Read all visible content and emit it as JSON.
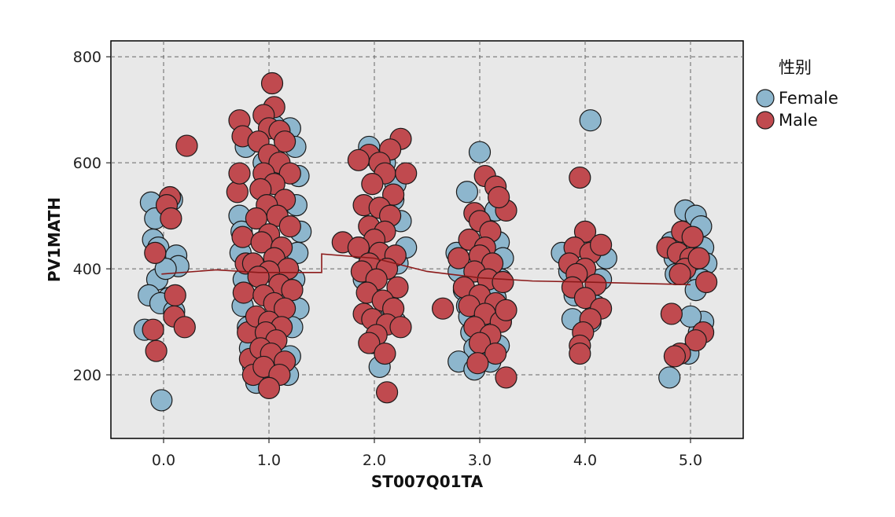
{
  "chart_data": {
    "type": "scatter",
    "xlabel": "ST007Q01TA",
    "ylabel": "PV1MATH",
    "xlim": [
      -0.5,
      5.5
    ],
    "ylim": [
      80,
      830
    ],
    "x_ticks": [
      "0.0",
      "1.0",
      "2.0",
      "3.0",
      "4.0",
      "5.0"
    ],
    "x_tick_values": [
      0,
      1,
      2,
      3,
      4,
      5
    ],
    "y_ticks": [
      "200",
      "400",
      "600",
      "800"
    ],
    "y_tick_values": [
      200,
      400,
      600,
      800
    ],
    "grid": true,
    "grid_style": "dashed",
    "legend_title": "性别",
    "legend_position": "right",
    "series": [
      {
        "name": "Female",
        "color": "#8db6cd",
        "points": [
          [
            -0.12,
            525
          ],
          [
            -0.08,
            495
          ],
          [
            -0.1,
            455
          ],
          [
            -0.05,
            440
          ],
          [
            0.12,
            425
          ],
          [
            0.14,
            405
          ],
          [
            -0.06,
            380
          ],
          [
            -0.14,
            350
          ],
          [
            0.05,
            345
          ],
          [
            -0.03,
            335
          ],
          [
            0.1,
            320
          ],
          [
            -0.18,
            285
          ],
          [
            0.02,
            400
          ],
          [
            -0.02,
            152
          ],
          [
            0.08,
            530
          ],
          [
            0.78,
            630
          ],
          [
            0.72,
            500
          ],
          [
            0.74,
            470
          ],
          [
            0.73,
            430
          ],
          [
            0.76,
            380
          ],
          [
            0.75,
            330
          ],
          [
            0.8,
            290
          ],
          [
            0.82,
            250
          ],
          [
            0.85,
            215
          ],
          [
            0.88,
            185
          ],
          [
            1.2,
            665
          ],
          [
            1.25,
            630
          ],
          [
            1.28,
            575
          ],
          [
            1.26,
            520
          ],
          [
            1.3,
            470
          ],
          [
            1.27,
            430
          ],
          [
            1.24,
            380
          ],
          [
            1.28,
            325
          ],
          [
            1.22,
            290
          ],
          [
            1.2,
            235
          ],
          [
            1.18,
            200
          ],
          [
            1.05,
            670
          ],
          [
            0.95,
            600
          ],
          [
            1.95,
            630
          ],
          [
            2.1,
            600
          ],
          [
            2.2,
            560
          ],
          [
            2.18,
            530
          ],
          [
            2.25,
            490
          ],
          [
            2.3,
            440
          ],
          [
            2.22,
            410
          ],
          [
            2.15,
            330
          ],
          [
            2.2,
            300
          ],
          [
            1.98,
            260
          ],
          [
            2.05,
            215
          ],
          [
            1.85,
            440
          ],
          [
            1.9,
            380
          ],
          [
            2.78,
            430
          ],
          [
            2.8,
            395
          ],
          [
            2.85,
            360
          ],
          [
            2.88,
            330
          ],
          [
            2.9,
            310
          ],
          [
            2.92,
            280
          ],
          [
            2.95,
            250
          ],
          [
            2.8,
            225
          ],
          [
            2.95,
            210
          ],
          [
            2.88,
            545
          ],
          [
            3.0,
            620
          ],
          [
            3.15,
            510
          ],
          [
            3.18,
            450
          ],
          [
            3.22,
            420
          ],
          [
            3.2,
            380
          ],
          [
            3.15,
            345
          ],
          [
            3.2,
            300
          ],
          [
            3.18,
            255
          ],
          [
            3.1,
            225
          ],
          [
            3.78,
            430
          ],
          [
            3.85,
            395
          ],
          [
            3.9,
            350
          ],
          [
            3.88,
            305
          ],
          [
            4.05,
            680
          ],
          [
            4.2,
            420
          ],
          [
            4.15,
            380
          ],
          [
            4.1,
            330
          ],
          [
            4.05,
            300
          ],
          [
            4.82,
            450
          ],
          [
            4.85,
            420
          ],
          [
            4.86,
            390
          ],
          [
            4.8,
            195
          ],
          [
            4.95,
            510
          ],
          [
            5.05,
            500
          ],
          [
            5.1,
            480
          ],
          [
            5.12,
            440
          ],
          [
            5.15,
            410
          ],
          [
            5.1,
            380
          ],
          [
            5.05,
            360
          ],
          [
            5.12,
            300
          ],
          [
            5.08,
            280
          ],
          [
            4.98,
            240
          ],
          [
            5.0,
            310
          ]
        ]
      },
      {
        "name": "Male",
        "color": "#c04a4f",
        "points": [
          [
            0.22,
            632
          ],
          [
            0.06,
            535
          ],
          [
            0.03,
            520
          ],
          [
            0.07,
            495
          ],
          [
            -0.08,
            430
          ],
          [
            0.11,
            350
          ],
          [
            0.1,
            310
          ],
          [
            -0.1,
            285
          ],
          [
            0.2,
            290
          ],
          [
            -0.07,
            245
          ],
          [
            0.72,
            680
          ],
          [
            0.75,
            650
          ],
          [
            0.7,
            545
          ],
          [
            0.72,
            580
          ],
          [
            0.75,
            460
          ],
          [
            0.78,
            410
          ],
          [
            0.76,
            355
          ],
          [
            0.8,
            280
          ],
          [
            0.82,
            230
          ],
          [
            0.85,
            200
          ],
          [
            1.03,
            750
          ],
          [
            1.05,
            705
          ],
          [
            0.95,
            690
          ],
          [
            1.0,
            665
          ],
          [
            1.1,
            660
          ],
          [
            1.15,
            640
          ],
          [
            0.9,
            640
          ],
          [
            1.0,
            615
          ],
          [
            1.1,
            600
          ],
          [
            0.95,
            580
          ],
          [
            1.2,
            580
          ],
          [
            1.05,
            560
          ],
          [
            0.92,
            550
          ],
          [
            1.15,
            530
          ],
          [
            0.98,
            520
          ],
          [
            1.08,
            500
          ],
          [
            0.88,
            495
          ],
          [
            1.2,
            480
          ],
          [
            1.0,
            465
          ],
          [
            0.93,
            450
          ],
          [
            1.12,
            440
          ],
          [
            1.05,
            420
          ],
          [
            0.85,
            410
          ],
          [
            1.18,
            400
          ],
          [
            1.0,
            395
          ],
          [
            0.9,
            385
          ],
          [
            1.1,
            370
          ],
          [
            1.22,
            360
          ],
          [
            0.95,
            350
          ],
          [
            1.05,
            335
          ],
          [
            1.15,
            325
          ],
          [
            0.88,
            310
          ],
          [
            1.0,
            300
          ],
          [
            1.12,
            290
          ],
          [
            0.97,
            280
          ],
          [
            1.07,
            265
          ],
          [
            0.92,
            250
          ],
          [
            1.02,
            240
          ],
          [
            1.15,
            225
          ],
          [
            0.95,
            215
          ],
          [
            1.1,
            200
          ],
          [
            1.0,
            175
          ],
          [
            2.25,
            645
          ],
          [
            2.15,
            625
          ],
          [
            1.95,
            615
          ],
          [
            1.85,
            605
          ],
          [
            2.05,
            600
          ],
          [
            2.1,
            580
          ],
          [
            2.3,
            580
          ],
          [
            1.98,
            560
          ],
          [
            2.18,
            540
          ],
          [
            1.9,
            520
          ],
          [
            2.05,
            515
          ],
          [
            2.15,
            500
          ],
          [
            1.95,
            480
          ],
          [
            2.1,
            470
          ],
          [
            2.0,
            455
          ],
          [
            1.7,
            450
          ],
          [
            1.85,
            440
          ],
          [
            2.05,
            430
          ],
          [
            2.2,
            425
          ],
          [
            1.95,
            410
          ],
          [
            2.12,
            400
          ],
          [
            1.88,
            395
          ],
          [
            2.02,
            380
          ],
          [
            2.22,
            365
          ],
          [
            1.93,
            355
          ],
          [
            2.08,
            340
          ],
          [
            2.18,
            325
          ],
          [
            1.9,
            315
          ],
          [
            1.98,
            305
          ],
          [
            2.12,
            295
          ],
          [
            2.25,
            290
          ],
          [
            2.02,
            275
          ],
          [
            1.95,
            260
          ],
          [
            2.1,
            240
          ],
          [
            2.12,
            167
          ],
          [
            2.65,
            325
          ],
          [
            3.05,
            575
          ],
          [
            3.15,
            555
          ],
          [
            2.95,
            505
          ],
          [
            3.0,
            490
          ],
          [
            3.25,
            510
          ],
          [
            3.18,
            535
          ],
          [
            3.1,
            470
          ],
          [
            2.9,
            455
          ],
          [
            3.05,
            440
          ],
          [
            2.8,
            420
          ],
          [
            3.0,
            425
          ],
          [
            3.12,
            410
          ],
          [
            2.95,
            395
          ],
          [
            3.08,
            380
          ],
          [
            3.22,
            375
          ],
          [
            2.85,
            365
          ],
          [
            3.0,
            350
          ],
          [
            3.15,
            335
          ],
          [
            2.9,
            330
          ],
          [
            3.05,
            315
          ],
          [
            3.2,
            300
          ],
          [
            2.95,
            290
          ],
          [
            3.1,
            275
          ],
          [
            3.0,
            260
          ],
          [
            3.15,
            240
          ],
          [
            2.98,
            222
          ],
          [
            3.25,
            322
          ],
          [
            3.25,
            195
          ],
          [
            3.95,
            572
          ],
          [
            4.0,
            470
          ],
          [
            3.9,
            440
          ],
          [
            4.05,
            430
          ],
          [
            4.15,
            445
          ],
          [
            3.85,
            410
          ],
          [
            4.0,
            400
          ],
          [
            3.92,
            390
          ],
          [
            4.1,
            370
          ],
          [
            3.88,
            365
          ],
          [
            4.0,
            345
          ],
          [
            4.15,
            325
          ],
          [
            4.05,
            305
          ],
          [
            3.98,
            280
          ],
          [
            3.95,
            255
          ],
          [
            3.95,
            240
          ],
          [
            4.78,
            440
          ],
          [
            4.92,
            470
          ],
          [
            5.02,
            460
          ],
          [
            4.88,
            430
          ],
          [
            5.0,
            420
          ],
          [
            4.95,
            400
          ],
          [
            5.08,
            420
          ],
          [
            4.9,
            390
          ],
          [
            5.15,
            375
          ],
          [
            4.82,
            315
          ],
          [
            5.12,
            280
          ],
          [
            5.05,
            265
          ],
          [
            4.9,
            240
          ],
          [
            4.85,
            235
          ]
        ]
      }
    ],
    "mean_line": {
      "color": "#8b1a1a",
      "points": [
        [
          -0.02,
          390
        ],
        [
          0.5,
          398
        ],
        [
          0.9,
          393
        ],
        [
          1.5,
          393
        ],
        [
          1.5,
          428
        ],
        [
          2.0,
          420
        ],
        [
          2.5,
          395
        ],
        [
          3.0,
          383
        ],
        [
          3.5,
          377
        ],
        [
          4.0,
          375
        ],
        [
          5.0,
          370
        ]
      ]
    }
  }
}
